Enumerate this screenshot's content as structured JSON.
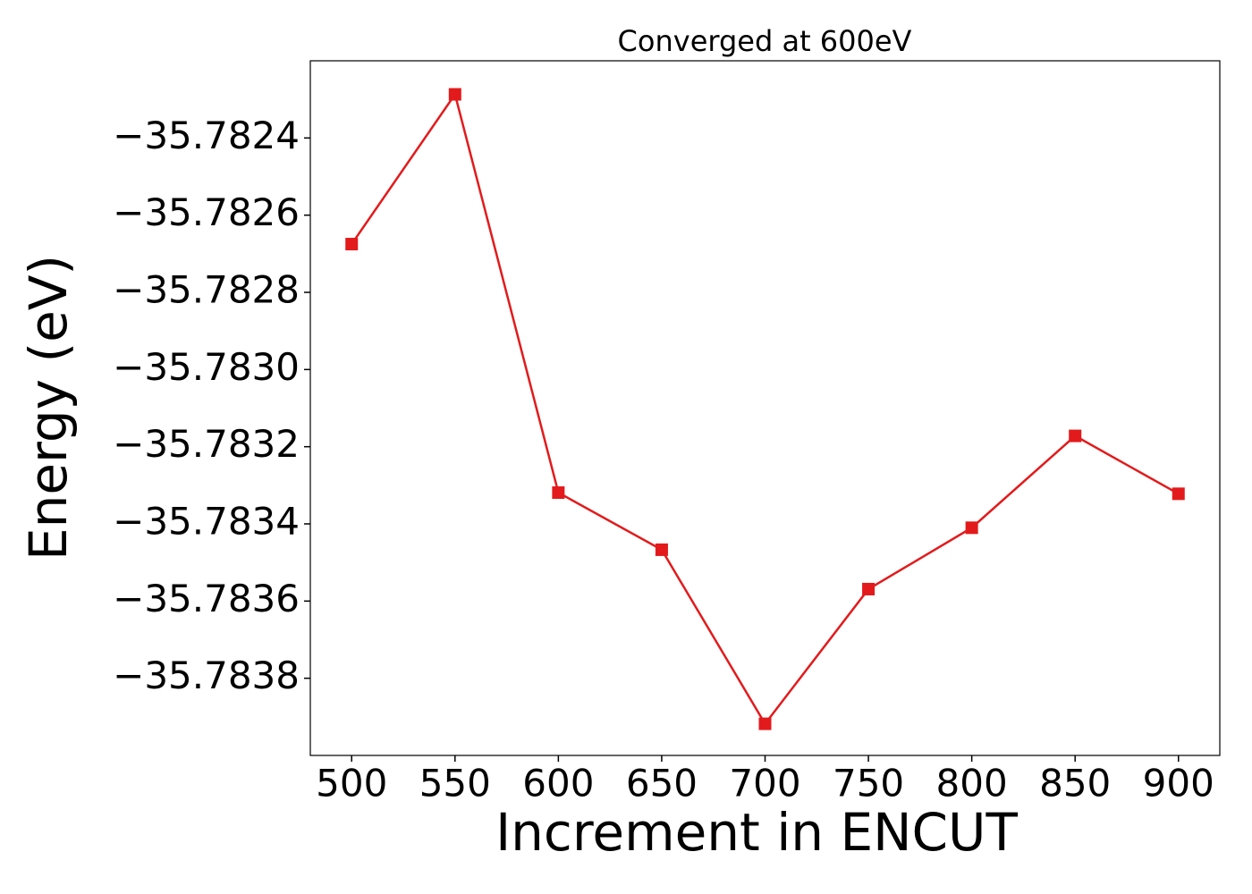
{
  "chart_data": {
    "type": "line",
    "title": "Converged at 600eV",
    "x_label": "Increment in ENCUT",
    "y_label": "Energy (eV)",
    "x": [
      500,
      550,
      600,
      650,
      700,
      750,
      800,
      850,
      900
    ],
    "series": [
      {
        "color": "#e31a1c",
        "marker": "square",
        "values": [
          -35.782675,
          -35.782287,
          -35.783319,
          -35.783467,
          -35.783918,
          -35.783569,
          -35.78341,
          -35.783172,
          -35.783322
        ]
      }
    ],
    "xlim": [
      480,
      920
    ],
    "xticks": [
      500,
      550,
      600,
      650,
      700,
      750,
      800,
      850,
      900
    ],
    "ylim": [
      -35.784,
      -35.7822
    ],
    "yticks": [
      {
        "value": -35.7838,
        "label": "−35.7838"
      },
      {
        "value": -35.7836,
        "label": "−35.7836"
      },
      {
        "value": -35.7834,
        "label": "−35.7834"
      },
      {
        "value": -35.7832,
        "label": "−35.7832"
      },
      {
        "value": -35.783,
        "label": "−35.7830"
      },
      {
        "value": -35.7828,
        "label": "−35.7828"
      },
      {
        "value": -35.7826,
        "label": "−35.7826"
      },
      {
        "value": -35.7824,
        "label": "−35.7824"
      }
    ],
    "grid": false
  }
}
